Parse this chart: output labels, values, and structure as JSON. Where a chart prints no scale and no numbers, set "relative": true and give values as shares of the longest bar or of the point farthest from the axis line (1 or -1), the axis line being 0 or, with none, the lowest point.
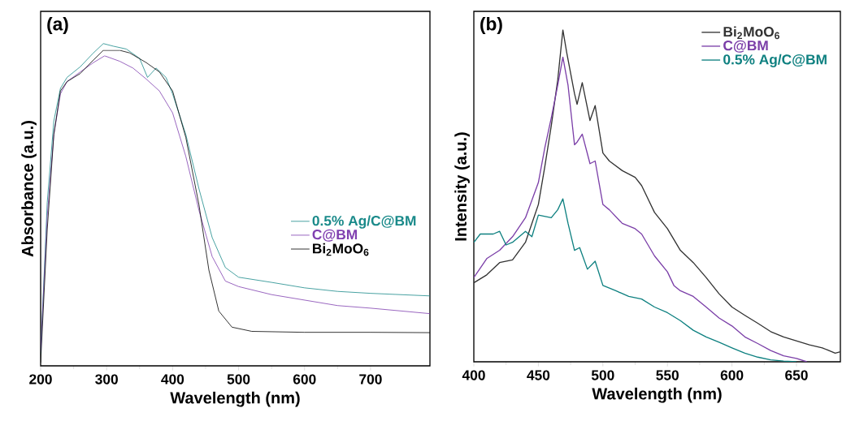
{
  "chart_data": [
    {
      "type": "line",
      "title": "(a)",
      "xlabel": "Wavelength (nm)",
      "ylabel": "Absorbance (a.u.)",
      "relative": true,
      "xlim": [
        200,
        790
      ],
      "xticks": [
        200,
        300,
        400,
        500,
        600,
        700
      ],
      "legend": "right",
      "series": [
        {
          "name": "0.5% Ag/C@BM",
          "color": "#1a8a8a",
          "x": [
            200,
            210,
            220,
            230,
            240,
            260,
            280,
            295,
            310,
            330,
            350,
            362,
            375,
            390,
            400,
            420,
            440,
            460,
            480,
            500,
            550,
            600,
            650,
            700,
            790
          ],
          "values": [
            0.035,
            0.507,
            0.76,
            0.861,
            0.895,
            0.928,
            0.971,
            1.0,
            0.992,
            0.983,
            0.954,
            0.895,
            0.924,
            0.895,
            0.844,
            0.718,
            0.549,
            0.398,
            0.305,
            0.275,
            0.259,
            0.242,
            0.231,
            0.225,
            0.217
          ]
        },
        {
          "name": "C@BM",
          "color": "#8040b0",
          "x": [
            200,
            210,
            220,
            230,
            240,
            260,
            280,
            297,
            320,
            340,
            360,
            380,
            400,
            420,
            440,
            460,
            480,
            500,
            550,
            600,
            650,
            700,
            790
          ],
          "values": [
            0.044,
            0.465,
            0.718,
            0.844,
            0.882,
            0.912,
            0.941,
            0.962,
            0.945,
            0.924,
            0.89,
            0.853,
            0.785,
            0.65,
            0.482,
            0.339,
            0.263,
            0.246,
            0.221,
            0.204,
            0.187,
            0.179,
            0.162
          ]
        },
        {
          "name": "Bi$_{2}$MoO$_{6}$",
          "color": "#000000",
          "x": [
            200,
            210,
            220,
            230,
            240,
            260,
            280,
            295,
            320,
            335,
            360,
            380,
            400,
            420,
            440,
            455,
            470,
            490,
            520,
            600,
            700,
            790
          ],
          "values": [
            0.01,
            0.423,
            0.718,
            0.853,
            0.882,
            0.907,
            0.949,
            0.979,
            0.979,
            0.971,
            0.941,
            0.912,
            0.853,
            0.709,
            0.499,
            0.297,
            0.17,
            0.12,
            0.107,
            0.104,
            0.104,
            0.103
          ]
        }
      ]
    },
    {
      "type": "line",
      "title": "(b)",
      "xlabel": "Wavelength (nm)",
      "ylabel": "Intensity (a.u.)",
      "relative": true,
      "xlim": [
        400,
        684
      ],
      "xticks": [
        400,
        450,
        500,
        550,
        600,
        650
      ],
      "legend": "top right",
      "series": [
        {
          "name": "Bi$_{2}$MoO$_{6}$",
          "color": "#333333",
          "x": [
            400,
            410,
            420,
            430,
            440,
            450,
            455,
            460,
            465,
            469,
            472,
            478,
            480,
            484,
            490,
            494,
            500,
            505,
            515,
            525,
            530,
            540,
            550,
            560,
            570,
            580,
            590,
            600,
            610,
            620,
            630,
            640,
            650,
            660,
            670,
            680,
            684
          ],
          "values": [
            0.238,
            0.262,
            0.299,
            0.307,
            0.36,
            0.474,
            0.588,
            0.711,
            0.849,
            1.0,
            0.931,
            0.808,
            0.776,
            0.841,
            0.727,
            0.772,
            0.629,
            0.605,
            0.576,
            0.556,
            0.531,
            0.45,
            0.401,
            0.336,
            0.299,
            0.254,
            0.205,
            0.165,
            0.14,
            0.116,
            0.091,
            0.075,
            0.063,
            0.051,
            0.042,
            0.026,
            0.03
          ]
        },
        {
          "name": "C@BM",
          "color": "#7b3fa8",
          "x": [
            400,
            410,
            420,
            430,
            440,
            450,
            455,
            460,
            465,
            469,
            473,
            478,
            480,
            484,
            490,
            494,
            500,
            505,
            515,
            525,
            530,
            540,
            550,
            555,
            560,
            570,
            580,
            590,
            600,
            610,
            620,
            630,
            640,
            650,
            658
          ],
          "values": [
            0.254,
            0.311,
            0.336,
            0.377,
            0.434,
            0.54,
            0.645,
            0.735,
            0.833,
            0.918,
            0.833,
            0.654,
            0.662,
            0.686,
            0.597,
            0.605,
            0.474,
            0.458,
            0.417,
            0.401,
            0.385,
            0.319,
            0.271,
            0.23,
            0.214,
            0.197,
            0.165,
            0.132,
            0.108,
            0.075,
            0.055,
            0.034,
            0.018,
            0.01,
            0.0
          ]
        },
        {
          "name": "0.5% Ag/C@BM",
          "color": "#0e8080",
          "x": [
            400,
            405,
            415,
            420,
            425,
            430,
            440,
            445,
            450,
            460,
            465,
            469,
            473,
            478,
            482,
            488,
            494,
            500,
            510,
            520,
            530,
            540,
            550,
            560,
            570,
            580,
            590,
            600,
            610,
            620,
            630,
            640,
            650
          ],
          "values": [
            0.36,
            0.385,
            0.385,
            0.393,
            0.352,
            0.36,
            0.393,
            0.377,
            0.442,
            0.434,
            0.458,
            0.491,
            0.417,
            0.336,
            0.344,
            0.279,
            0.303,
            0.23,
            0.214,
            0.197,
            0.189,
            0.165,
            0.148,
            0.124,
            0.095,
            0.075,
            0.059,
            0.042,
            0.026,
            0.014,
            0.006,
            0.002,
            0.0
          ]
        }
      ]
    }
  ]
}
